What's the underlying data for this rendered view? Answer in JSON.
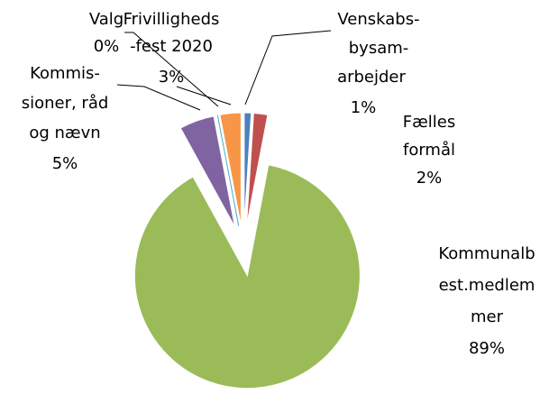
{
  "chart_data": {
    "type": "pie",
    "categories": [
      [
        "Venskabs-",
        "bysam-",
        "arbejder"
      ],
      [
        "Fælles",
        "formål"
      ],
      [
        "Kommunalb",
        "est.medlem",
        "mer"
      ],
      [
        "Kommis-",
        "sioner, råd",
        "og nævn"
      ],
      [
        "Valg"
      ],
      [
        "Frivilligheds",
        "-fest 2020"
      ]
    ],
    "values": [
      1,
      2,
      89,
      5,
      0,
      3
    ],
    "value_labels": [
      "1%",
      "2%",
      "89%",
      "5%",
      "0%",
      "3%"
    ],
    "colors": [
      "#4f81bd",
      "#c0504d",
      "#9bbb59",
      "#8064a2",
      "#4bacc6",
      "#f79646"
    ]
  }
}
